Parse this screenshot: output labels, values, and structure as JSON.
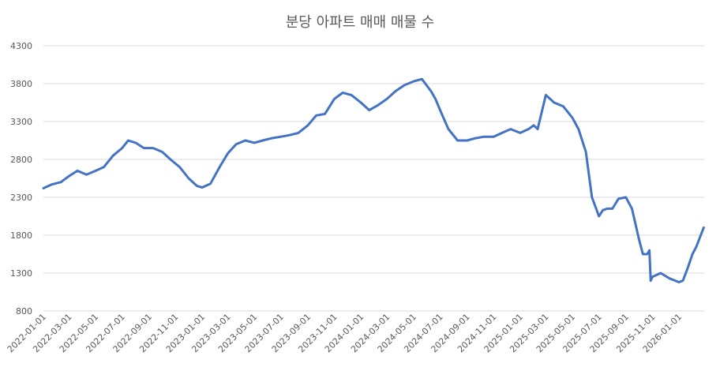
{
  "chart_data": {
    "type": "line",
    "title": "분당 아파트 매매 매물 수",
    "xlabel": "",
    "ylabel": "",
    "ylim": [
      800,
      4300
    ],
    "yticks": [
      800,
      1300,
      1800,
      2300,
      2800,
      3300,
      3800,
      4300
    ],
    "xlim": [
      "2022-01-01",
      "2026-02-28"
    ],
    "xticks": [
      "2022-01-01",
      "2022-03-01",
      "2022-05-01",
      "2022-07-01",
      "2022-09-01",
      "2022-11-01",
      "2023-01-01",
      "2023-03-01",
      "2023-05-01",
      "2023-07-01",
      "2023-09-01",
      "2023-11-01",
      "2024-01-01",
      "2024-03-01",
      "2024-05-01",
      "2024-07-01",
      "2024-09-01",
      "2024-11-01",
      "2025-01-01",
      "2025-03-01",
      "2025-05-01",
      "2025-07-01",
      "2025-09-01",
      "2025-11-01",
      "2026-01-01"
    ],
    "grid": "horizontal",
    "legend": "none",
    "color": "#4472C4",
    "series": [
      {
        "x": [
          "2022-01-01",
          "2022-01-20",
          "2022-02-10",
          "2022-03-01",
          "2022-03-20",
          "2022-04-10",
          "2022-05-01",
          "2022-05-20",
          "2022-06-10",
          "2022-07-01",
          "2022-07-15",
          "2022-08-01",
          "2022-08-20",
          "2022-09-10",
          "2022-10-01",
          "2022-10-20",
          "2022-11-10",
          "2022-12-01",
          "2022-12-20",
          "2023-01-01",
          "2023-01-20",
          "2023-02-10",
          "2023-03-01",
          "2023-03-20",
          "2023-04-10",
          "2023-05-01",
          "2023-05-20",
          "2023-06-10",
          "2023-07-01",
          "2023-07-20",
          "2023-08-10",
          "2023-09-01",
          "2023-09-20",
          "2023-10-10",
          "2023-11-01",
          "2023-11-20",
          "2023-12-10",
          "2024-01-01",
          "2024-01-20",
          "2024-02-10",
          "2024-03-01",
          "2024-03-20",
          "2024-04-10",
          "2024-05-01",
          "2024-05-20",
          "2024-06-10",
          "2024-06-20",
          "2024-07-01",
          "2024-07-20",
          "2024-08-10",
          "2024-09-01",
          "2024-09-20",
          "2024-10-10",
          "2024-11-01",
          "2024-11-20",
          "2024-12-10",
          "2025-01-01",
          "2025-01-20",
          "2025-02-01",
          "2025-02-10",
          "2025-03-01",
          "2025-03-20",
          "2025-04-10",
          "2025-05-01",
          "2025-05-15",
          "2025-06-01",
          "2025-06-15",
          "2025-07-01",
          "2025-07-10",
          "2025-07-20",
          "2025-08-01",
          "2025-08-15",
          "2025-09-01",
          "2025-09-15",
          "2025-10-01",
          "2025-10-10",
          "2025-10-20",
          "2025-10-25",
          "2025-10-28",
          "2025-11-01",
          "2025-11-20",
          "2025-12-10",
          "2026-01-01",
          "2026-01-10",
          "2026-01-20",
          "2026-02-01",
          "2026-02-10",
          "2026-02-20",
          "2026-02-27"
        ],
        "y": [
          2420,
          2470,
          2500,
          2580,
          2650,
          2600,
          2650,
          2700,
          2850,
          2950,
          3050,
          3020,
          2950,
          2950,
          2900,
          2800,
          2700,
          2550,
          2450,
          2430,
          2480,
          2700,
          2880,
          3000,
          3050,
          3020,
          3050,
          3080,
          3100,
          3120,
          3150,
          3250,
          3380,
          3400,
          3600,
          3680,
          3650,
          3550,
          3450,
          3520,
          3600,
          3700,
          3780,
          3830,
          3860,
          3700,
          3600,
          3450,
          3200,
          3050,
          3050,
          3080,
          3100,
          3100,
          3150,
          3200,
          3150,
          3200,
          3250,
          3200,
          3650,
          3550,
          3500,
          3350,
          3200,
          2900,
          2300,
          2050,
          2130,
          2150,
          2150,
          2280,
          2300,
          2150,
          1750,
          1550,
          1550,
          1600,
          1200,
          1250,
          1300,
          1230,
          1180,
          1200,
          1350,
          1550,
          1650,
          1800,
          1900
        ]
      }
    ]
  }
}
